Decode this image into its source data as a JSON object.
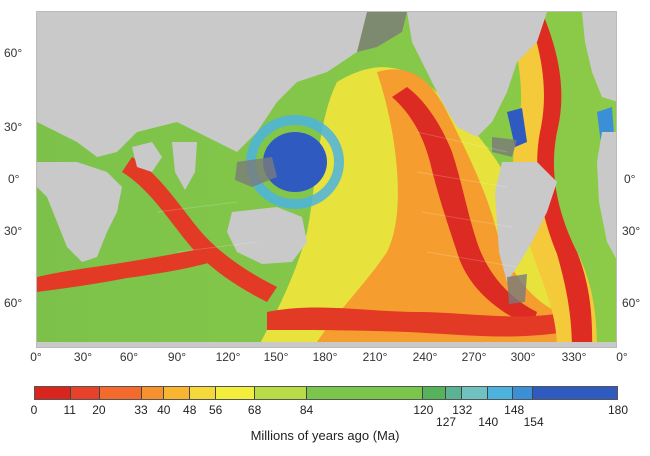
{
  "map": {
    "latitude_labels_left": [
      "60°",
      "30°",
      "0°",
      "30°",
      "60°"
    ],
    "latitude_labels_right": [
      "0°",
      "30°",
      "60°"
    ],
    "longitude_labels": [
      "0°",
      "30°",
      "60°",
      "90°",
      "120°",
      "150°",
      "180°",
      "210°",
      "240°",
      "270°",
      "300°",
      "330°",
      "0°"
    ]
  },
  "legend": {
    "title": "Millions of years ago (Ma)",
    "range": [
      0,
      180
    ],
    "ticks_upper": [
      "0",
      "11",
      "20",
      "33",
      "40",
      "48",
      "56",
      "68",
      "84",
      "120",
      "132",
      "148",
      "180"
    ],
    "ticks_lower": [
      "127",
      "140",
      "154"
    ],
    "segments": [
      {
        "from": 0,
        "to": 11,
        "color": "#d8261f"
      },
      {
        "from": 11,
        "to": 20,
        "color": "#e8412a"
      },
      {
        "from": 20,
        "to": 33,
        "color": "#f46a2c"
      },
      {
        "from": 33,
        "to": 40,
        "color": "#f6912e"
      },
      {
        "from": 40,
        "to": 48,
        "color": "#f8b52f"
      },
      {
        "from": 48,
        "to": 56,
        "color": "#f5d93a"
      },
      {
        "from": 56,
        "to": 68,
        "color": "#f2ee3b"
      },
      {
        "from": 68,
        "to": 84,
        "color": "#b7dc46"
      },
      {
        "from": 84,
        "to": 120,
        "color": "#79c64a"
      },
      {
        "from": 120,
        "to": 127,
        "color": "#55b35b"
      },
      {
        "from": 127,
        "to": 132,
        "color": "#5bb395"
      },
      {
        "from": 132,
        "to": 140,
        "color": "#6fc2c0"
      },
      {
        "from": 140,
        "to": 148,
        "color": "#4cb3df"
      },
      {
        "from": 148,
        "to": 154,
        "color": "#3b8fd7"
      },
      {
        "from": 154,
        "to": 180,
        "color": "#2f5bc1"
      }
    ]
  }
}
